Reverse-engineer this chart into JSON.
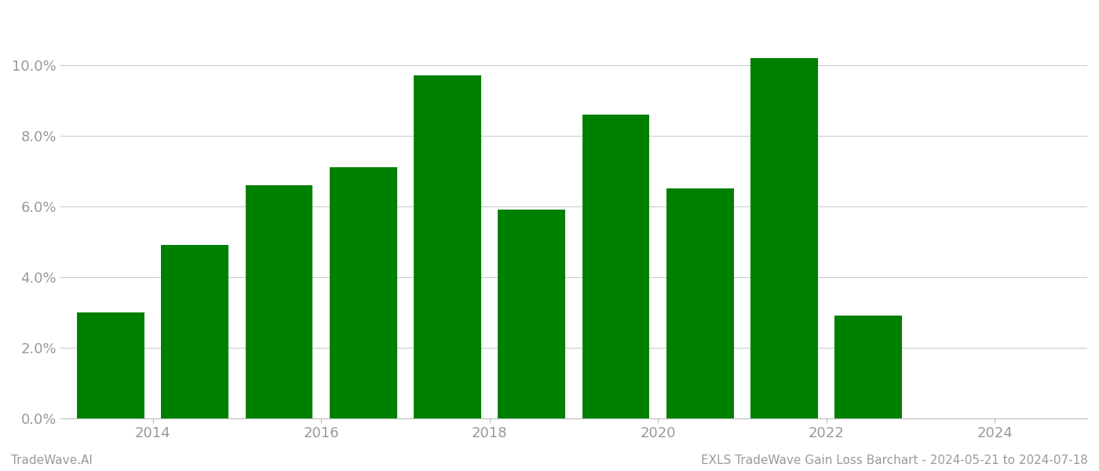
{
  "years": [
    2013,
    2014,
    2015,
    2016,
    2017,
    2018,
    2019,
    2020,
    2021,
    2022,
    2023
  ],
  "values": [
    0.03,
    0.049,
    0.066,
    0.071,
    0.097,
    0.059,
    0.086,
    0.065,
    0.102,
    0.029,
    0.0
  ],
  "bar_color": "#008000",
  "background_color": "#ffffff",
  "grid_color": "#cccccc",
  "axis_label_color": "#999999",
  "ylabel_ticks": [
    0.0,
    0.02,
    0.04,
    0.06,
    0.08,
    0.1
  ],
  "ylim": [
    0,
    0.115
  ],
  "xlim": [
    2012.4,
    2024.6
  ],
  "xtick_positions": [
    2013.5,
    2015.5,
    2017.5,
    2019.5,
    2021.5,
    2023.5
  ],
  "xtick_labels": [
    "2014",
    "2016",
    "2018",
    "2020",
    "2022",
    "2024"
  ],
  "footer_left": "TradeWave.AI",
  "footer_right": "EXLS TradeWave Gain Loss Barchart - 2024-05-21 to 2024-07-18",
  "footer_color": "#999999",
  "footer_fontsize": 11,
  "bar_width": 0.8
}
